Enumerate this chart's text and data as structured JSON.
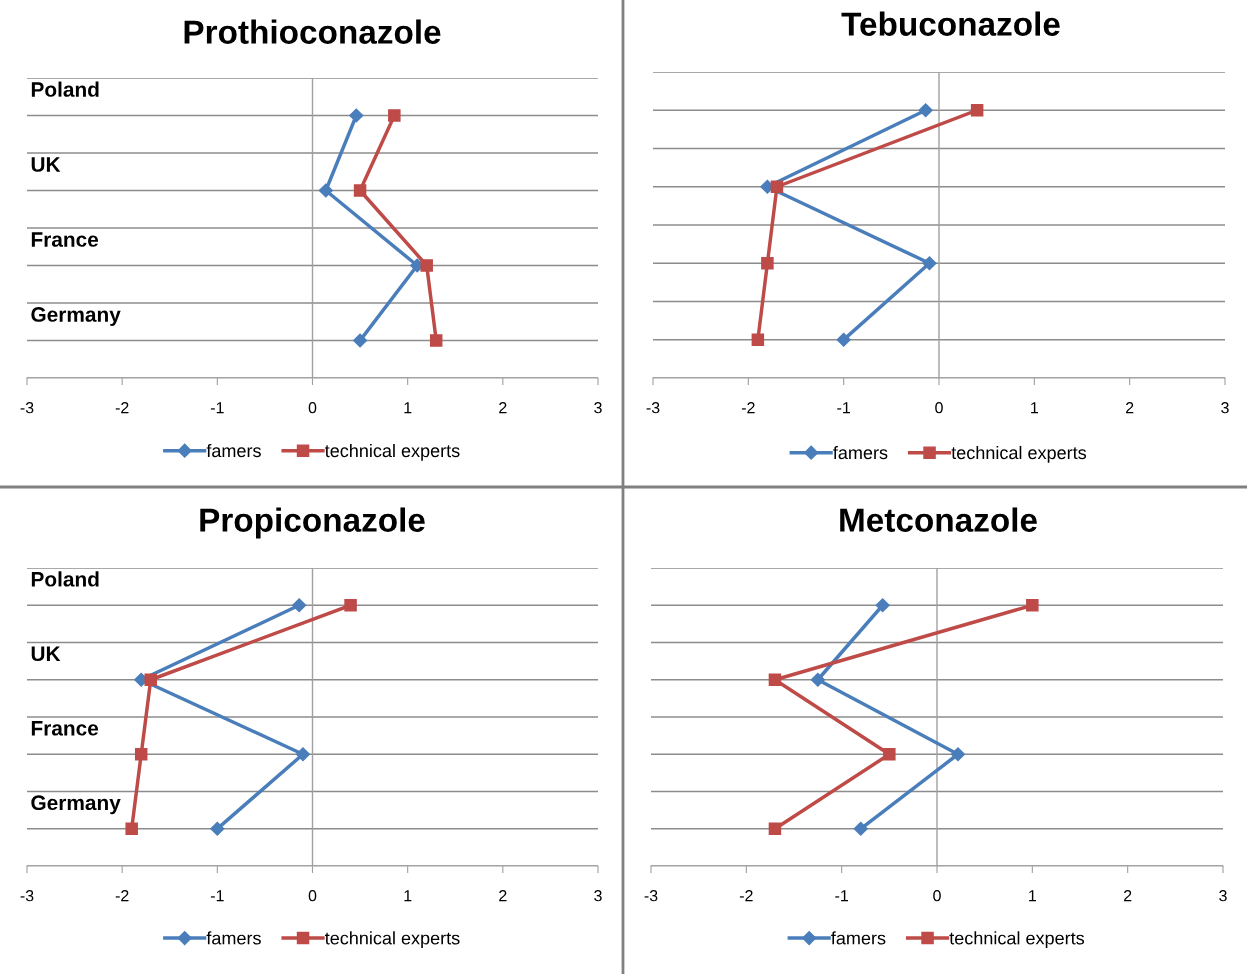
{
  "chart_data": [
    {
      "type": "line",
      "title": "Prothioconazole",
      "orientation": "horizontal",
      "categories": [
        "Poland",
        "UK",
        "France",
        "Germany"
      ],
      "xlim": [
        -3,
        3
      ],
      "xticks": [
        -3,
        -2,
        -1,
        0,
        1,
        2,
        3
      ],
      "grid": "y",
      "legend": "bottom",
      "ref_lines": [
        {
          "axis": "x",
          "value": 0,
          "color": "#a0a0a0"
        }
      ],
      "series": [
        {
          "name": "famers",
          "color": "#4a7ebb",
          "marker": "diamond",
          "values": [
            0.46,
            0.14,
            1.1,
            0.5
          ]
        },
        {
          "name": "technical experts",
          "color": "#be4b48",
          "marker": "square",
          "values": [
            0.86,
            0.5,
            1.2,
            1.3
          ]
        }
      ]
    },
    {
      "type": "line",
      "title": "Tebuconazole",
      "orientation": "horizontal",
      "categories": [
        null,
        null,
        null,
        null
      ],
      "tick_labels": "x",
      "xlim": [
        -3,
        3
      ],
      "xticks": [
        -3,
        -2,
        -1,
        0,
        1,
        2,
        3
      ],
      "grid": "y",
      "legend": "bottom",
      "ref_lines": [
        {
          "axis": "x",
          "value": 0,
          "color": "#a0a0a0"
        }
      ],
      "series": [
        {
          "name": "famers",
          "color": "#4a7ebb",
          "marker": "diamond",
          "values": [
            -0.14,
            -1.8,
            -0.1,
            -1.0
          ]
        },
        {
          "name": "technical experts",
          "color": "#be4b48",
          "marker": "square",
          "values": [
            0.4,
            -1.7,
            -1.8,
            -1.9
          ]
        }
      ]
    },
    {
      "type": "line",
      "title": "Propiconazole",
      "orientation": "horizontal",
      "categories": [
        "Poland",
        "UK",
        "France",
        "Germany"
      ],
      "xlim": [
        -3,
        3
      ],
      "xticks": [
        -3,
        -2,
        -1,
        0,
        1,
        2,
        3
      ],
      "grid": "y",
      "legend": "bottom",
      "ref_lines": [
        {
          "axis": "x",
          "value": 0,
          "color": "#a0a0a0"
        }
      ],
      "series": [
        {
          "name": "famers",
          "color": "#4a7ebb",
          "marker": "diamond",
          "values": [
            -0.14,
            -1.8,
            -0.1,
            -1.0
          ]
        },
        {
          "name": "technical experts",
          "color": "#be4b48",
          "marker": "square",
          "values": [
            0.4,
            -1.7,
            -1.8,
            -1.9
          ]
        }
      ]
    },
    {
      "type": "line",
      "title": "Metconazole",
      "orientation": "horizontal",
      "categories": [
        null,
        null,
        null,
        null
      ],
      "tick_labels": "x",
      "xlim": [
        -3,
        3
      ],
      "xticks": [
        -3,
        -2,
        -1,
        0,
        1,
        2,
        3
      ],
      "grid": "y",
      "legend": "bottom",
      "ref_lines": [
        {
          "axis": "x",
          "value": 0,
          "color": "#a0a0a0"
        }
      ],
      "series": [
        {
          "name": "famers",
          "color": "#4a7ebb",
          "marker": "diamond",
          "values": [
            -0.57,
            -1.25,
            0.22,
            -0.8
          ]
        },
        {
          "name": "technical experts",
          "color": "#be4b48",
          "marker": "square",
          "values": [
            1.0,
            -1.7,
            -0.5,
            -1.7
          ]
        }
      ]
    }
  ]
}
